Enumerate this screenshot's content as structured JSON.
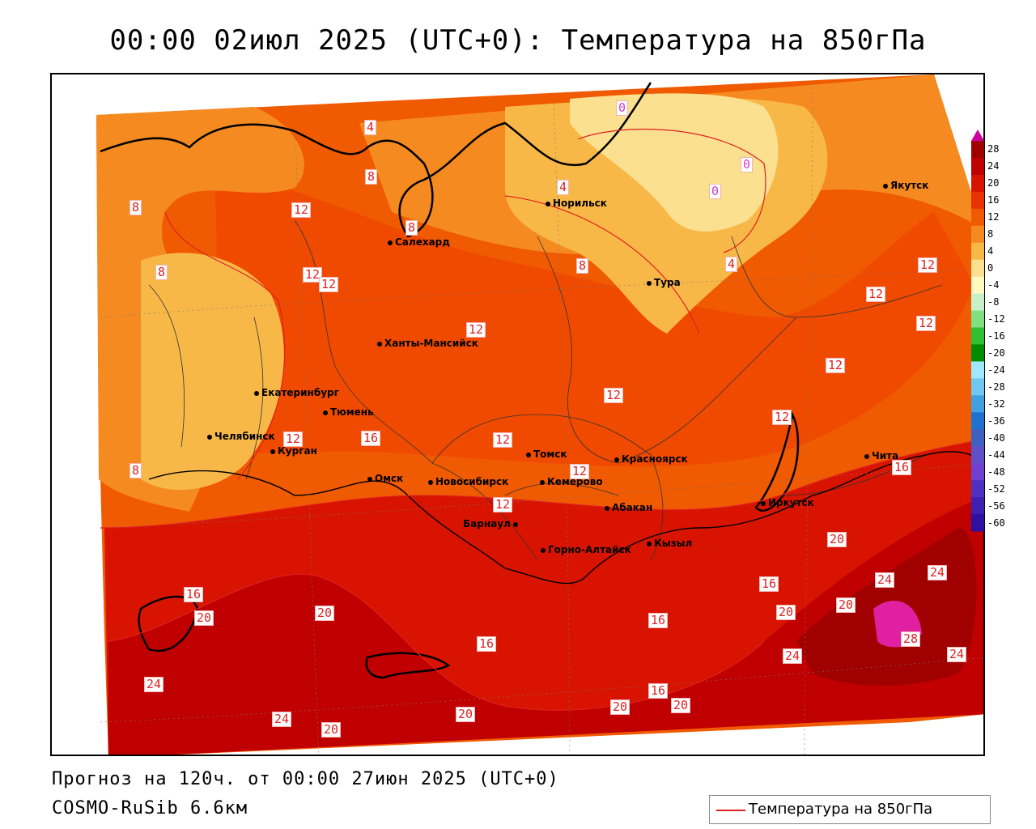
{
  "title": "00:00 02июл 2025 (UTC+0): Температура на 850гПа",
  "footer": {
    "forecast": "Прогноз на 120ч. от 00:00 27июн 2025 (UTC+0)",
    "model": "COSMO-RuSib 6.6км"
  },
  "legend": {
    "label": "Температура на 850гПа",
    "color": "#e02020"
  },
  "colorbar": {
    "ticks": [
      "28",
      "24",
      "20",
      "16",
      "12",
      "8",
      "4",
      "0",
      "-4",
      "-8",
      "-12",
      "-16",
      "-20",
      "-24",
      "-28",
      "-32",
      "-36",
      "-40",
      "-44",
      "-48",
      "-52",
      "-56",
      "-60"
    ],
    "colors": [
      "#a00000",
      "#c00000",
      "#d81400",
      "#e83200",
      "#f05a00",
      "#f58a20",
      "#f8b848",
      "#fbe090",
      "#fff8c0",
      "#c8f0c8",
      "#80e080",
      "#30c030",
      "#008c00",
      "#a0e8ff",
      "#70c8f0",
      "#40a0e0",
      "#2070d0",
      "#4060c0",
      "#6050c8",
      "#7040d0",
      "#5030c0",
      "#4020b0",
      "#3010a0"
    ]
  },
  "cities": [
    {
      "name": "Норильск"
    },
    {
      "name": "Салехард"
    },
    {
      "name": "Тура"
    },
    {
      "name": "Якутск"
    },
    {
      "name": "Ханты-Мансийск"
    },
    {
      "name": "Екатеринбург"
    },
    {
      "name": "Тюмень"
    },
    {
      "name": "Челябинск"
    },
    {
      "name": "Курган"
    },
    {
      "name": "Омск"
    },
    {
      "name": "Новосибирск"
    },
    {
      "name": "Томск"
    },
    {
      "name": "Кемерово"
    },
    {
      "name": "Красноярск"
    },
    {
      "name": "Абакан"
    },
    {
      "name": "Барнаул"
    },
    {
      "name": "Горно-Алтайск"
    },
    {
      "name": "Кызыл"
    },
    {
      "name": "Иркутск"
    },
    {
      "name": "Чита"
    }
  ],
  "contour_labels": [
    "0",
    "0",
    "0",
    "4",
    "4",
    "4",
    "8",
    "8",
    "8",
    "8",
    "8",
    "8",
    "12",
    "12",
    "12",
    "12",
    "12",
    "12",
    "12",
    "12",
    "12",
    "12",
    "12",
    "12",
    "12",
    "12",
    "16",
    "16",
    "16",
    "16",
    "16",
    "16",
    "16",
    "20",
    "20",
    "20",
    "20",
    "20",
    "20",
    "20",
    "20",
    "20",
    "24",
    "24",
    "24",
    "24",
    "24",
    "24",
    "28"
  ]
}
